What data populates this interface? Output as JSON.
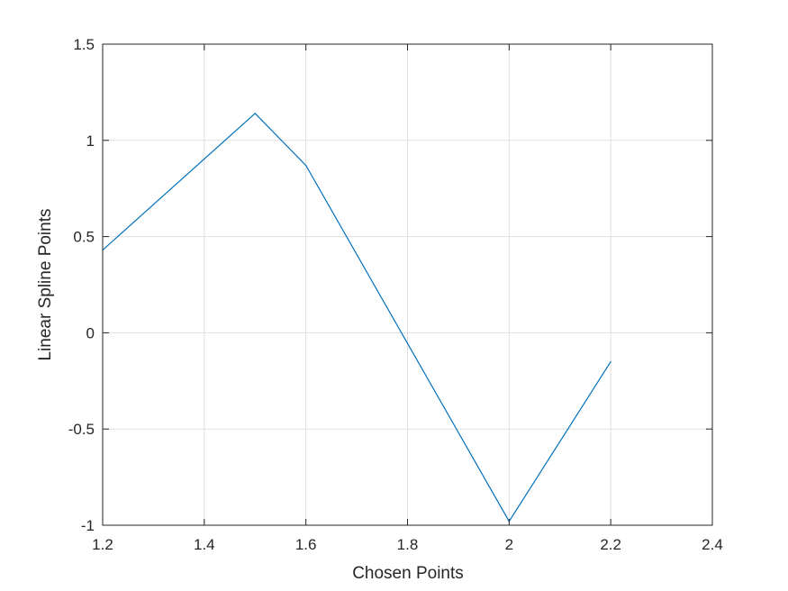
{
  "chart_data": {
    "type": "line",
    "title": "",
    "xlabel": "Chosen Points",
    "ylabel": "Linear Spline Points",
    "xlim": [
      1.2,
      2.4
    ],
    "ylim": [
      -1,
      1.5
    ],
    "xticks": [
      1.2,
      1.4,
      1.6,
      1.8,
      2.0,
      2.2,
      2.4
    ],
    "xtick_labels": [
      "1.2",
      "1.4",
      "1.6",
      "1.8",
      "2",
      "2.2",
      "2.4"
    ],
    "yticks": [
      -1,
      -0.5,
      0,
      0.5,
      1,
      1.5
    ],
    "ytick_labels": [
      "-1",
      "-0.5",
      "0",
      "0.5",
      "1",
      "1.5"
    ],
    "grid": true,
    "legend": "none",
    "series": [
      {
        "color": "#0072BD",
        "x": [
          1.2,
          1.5,
          1.6,
          2.0,
          2.2
        ],
        "y": [
          0.43,
          1.14,
          0.87,
          -0.98,
          -0.15
        ]
      }
    ]
  }
}
